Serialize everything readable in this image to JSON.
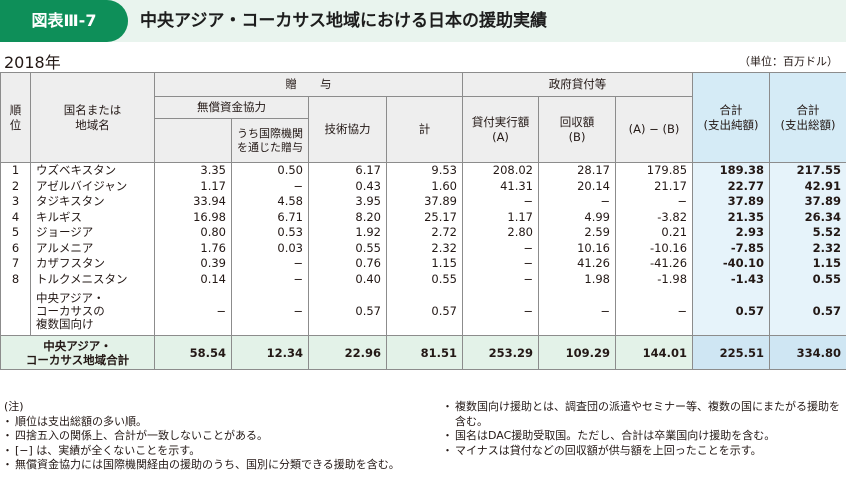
{
  "header": {
    "figure_label": "図表Ⅲ-7",
    "title": "中央アジア・コーカサス地域における日本の援助実績"
  },
  "year": "2018年",
  "unit": "（単位：百万ドル）",
  "table": {
    "headers": {
      "rank": "順\n位",
      "country": "国名または\n地域名",
      "grant": "贈　　与",
      "grant_aid": "無償資金協力",
      "via_intl": "うち国際機関\nを通じた贈与",
      "tech_coop": "技術協力",
      "grant_total": "計",
      "loans": "政府貸付等",
      "loan_disbursed": "貸付実行額\n(A)",
      "loan_recovered": "回収額\n(B)",
      "a_minus_b": "(A) − (B)",
      "net_total": "合計\n(支出純額)",
      "gross_total": "合計\n(支出総額)"
    },
    "rows": [
      {
        "rank": "1",
        "country": "ウズベキスタン",
        "grant_aid": "3.35",
        "via_intl": "0.50",
        "tech": "6.17",
        "total": "9.53",
        "disbursed": "208.02",
        "recovered": "28.17",
        "ab": "179.85",
        "net": "189.38",
        "gross": "217.55"
      },
      {
        "rank": "2",
        "country": "アゼルバイジャン",
        "grant_aid": "1.17",
        "via_intl": "−",
        "tech": "0.43",
        "total": "1.60",
        "disbursed": "41.31",
        "recovered": "20.14",
        "ab": "21.17",
        "net": "22.77",
        "gross": "42.91"
      },
      {
        "rank": "3",
        "country": "タジキスタン",
        "grant_aid": "33.94",
        "via_intl": "4.58",
        "tech": "3.95",
        "total": "37.89",
        "disbursed": "−",
        "recovered": "−",
        "ab": "−",
        "net": "37.89",
        "gross": "37.89"
      },
      {
        "rank": "4",
        "country": "キルギス",
        "grant_aid": "16.98",
        "via_intl": "6.71",
        "tech": "8.20",
        "total": "25.17",
        "disbursed": "1.17",
        "recovered": "4.99",
        "ab": "-3.82",
        "net": "21.35",
        "gross": "26.34"
      },
      {
        "rank": "5",
        "country": "ジョージア",
        "grant_aid": "0.80",
        "via_intl": "0.53",
        "tech": "1.92",
        "total": "2.72",
        "disbursed": "2.80",
        "recovered": "2.59",
        "ab": "0.21",
        "net": "2.93",
        "gross": "5.52"
      },
      {
        "rank": "6",
        "country": "アルメニア",
        "grant_aid": "1.76",
        "via_intl": "0.03",
        "tech": "0.55",
        "total": "2.32",
        "disbursed": "−",
        "recovered": "10.16",
        "ab": "-10.16",
        "net": "-7.85",
        "gross": "2.32"
      },
      {
        "rank": "7",
        "country": "カザフスタン",
        "grant_aid": "0.39",
        "via_intl": "−",
        "tech": "0.76",
        "total": "1.15",
        "disbursed": "−",
        "recovered": "41.26",
        "ab": "-41.26",
        "net": "-40.10",
        "gross": "1.15"
      },
      {
        "rank": "8",
        "country": "トルクメニスタン",
        "grant_aid": "0.14",
        "via_intl": "−",
        "tech": "0.40",
        "total": "0.55",
        "disbursed": "−",
        "recovered": "1.98",
        "ab": "-1.98",
        "net": "-1.43",
        "gross": "0.55"
      },
      {
        "rank": "",
        "country": "中央アジア・\nコーカサスの\n複数国向け",
        "grant_aid": "−",
        "via_intl": "−",
        "tech": "0.57",
        "total": "0.57",
        "disbursed": "−",
        "recovered": "−",
        "ab": "−",
        "net": "0.57",
        "gross": "0.57"
      }
    ],
    "total": {
      "label": "中央アジア・\nコーカサス地域合計",
      "grant_aid": "58.54",
      "via_intl": "12.34",
      "tech": "22.96",
      "total": "81.51",
      "disbursed": "253.29",
      "recovered": "109.29",
      "ab": "144.01",
      "net": "225.51",
      "gross": "334.80"
    }
  },
  "notes": {
    "heading": "(注)",
    "left": [
      "順位は支出総額の多い順。",
      "四捨五入の関係上、合計が一致しないことがある。",
      "[−] は、実績が全くないことを示す。",
      "無償資金協力には国際機関経由の援助のうち、国別に分類できる援助を含む。"
    ],
    "right": [
      "複数国向け援助とは、調査団の派遣やセミナー等、複数の国にまたがる援助を含む。",
      "国名はDAC援助受取国。ただし、合計は卒業国向け援助を含む。",
      "マイナスは貸付などの回収額が供与額を上回ったことを示す。"
    ]
  }
}
